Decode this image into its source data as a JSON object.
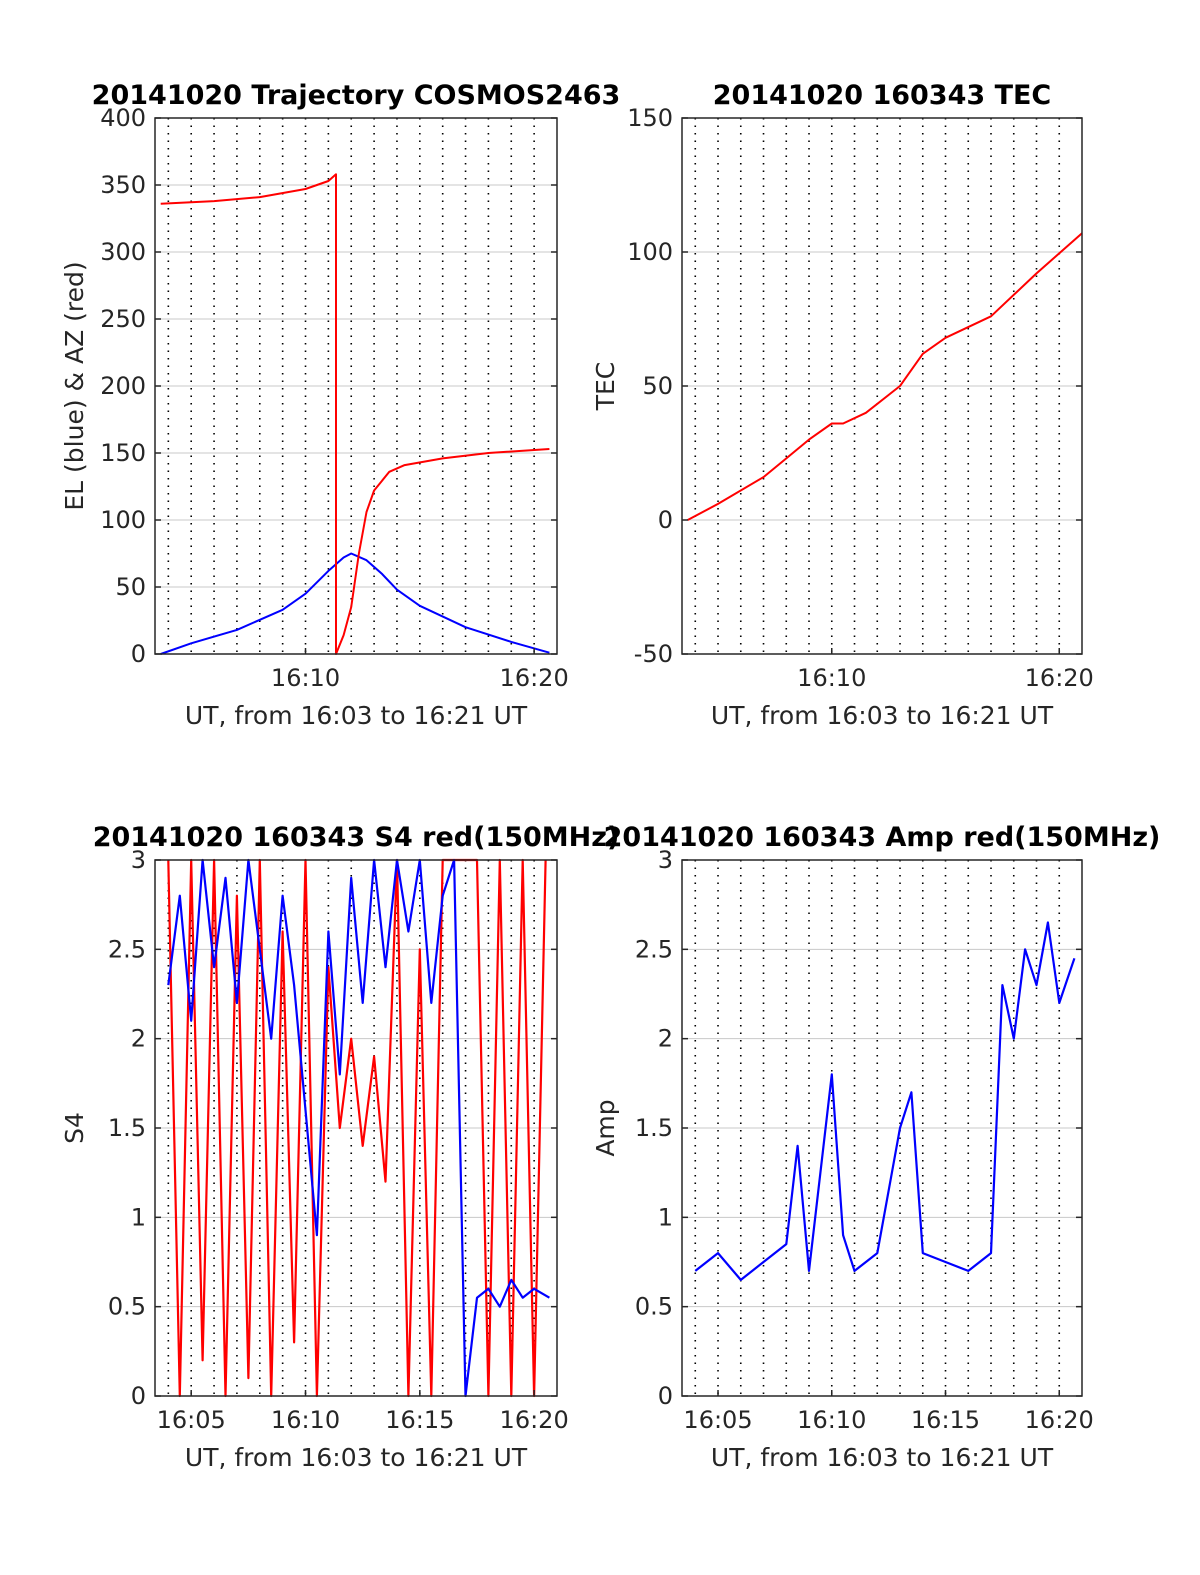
{
  "figure": {
    "colors": {
      "red": "#ff0000",
      "blue": "#0000ff",
      "grid": "#c8c8c8",
      "axis": "#262626"
    }
  },
  "chart_data": [
    {
      "type": "line",
      "title": "20141020 Trajectory COSMOS2463",
      "xlabel": "UT, from 16:03 to 16:21 UT",
      "ylabel": "EL (blue) & AZ (red)",
      "xlim": [
        16.03,
        16.21
      ],
      "ylim": [
        0,
        400
      ],
      "yticks": [
        "0",
        "50",
        "100",
        "150",
        "200",
        "250",
        "300",
        "350",
        "400"
      ],
      "xticks": [
        "16:10",
        "16:20"
      ],
      "grid": true,
      "series": [
        {
          "color": "blue",
          "x": [
            "16:03:40",
            "16:05:00",
            "16:07:00",
            "16:09:00",
            "16:10:00",
            "16:11:00",
            "16:11:40",
            "16:12:00",
            "16:12:40",
            "16:13:20",
            "16:14:00",
            "16:15:00",
            "16:17:00",
            "16:19:00",
            "16:20:40"
          ],
          "y": [
            0,
            8,
            18,
            33,
            45,
            62,
            72,
            75,
            70,
            60,
            48,
            36,
            20,
            9,
            1
          ]
        },
        {
          "color": "red",
          "x": [
            "16:03:40",
            "16:06:00",
            "16:08:00",
            "16:10:00",
            "16:11:00",
            "16:11:20",
            "16:11:20",
            "16:11:40",
            "16:12:00",
            "16:12:20",
            "16:12:40",
            "16:13:00",
            "16:13:40",
            "16:14:20",
            "16:16:00",
            "16:18:00",
            "16:20:40"
          ],
          "y": [
            336,
            338,
            341,
            347,
            353,
            358,
            0,
            14,
            35,
            75,
            106,
            122,
            136,
            141,
            146,
            150,
            153
          ]
        }
      ]
    },
    {
      "type": "line",
      "title": "20141020 160343 TEC",
      "xlabel": "UT, from 16:03 to 16:21 UT",
      "ylabel": "TEC",
      "xlim": [
        16.03,
        16.21
      ],
      "ylim": [
        -50,
        150
      ],
      "yticks": [
        "-50",
        "0",
        "50",
        "100",
        "150"
      ],
      "xticks": [
        "16:10",
        "16:20"
      ],
      "grid": true,
      "series": [
        {
          "color": "red",
          "x": [
            "16:03:40",
            "16:05:00",
            "16:07:00",
            "16:08:00",
            "16:09:00",
            "16:10:00",
            "16:10:30",
            "16:11:30",
            "16:13:00",
            "16:14:00",
            "16:15:00",
            "16:17:00",
            "16:19:00",
            "16:21:00"
          ],
          "y": [
            0,
            6,
            16,
            23,
            30,
            36,
            36,
            40,
            50,
            62,
            68,
            76,
            92,
            107
          ]
        }
      ]
    },
    {
      "type": "line",
      "title": "20141020 160343 S4 red(150MHz)",
      "xlabel": "UT, from 16:03 to 16:21 UT",
      "ylabel": "S4",
      "xlim": [
        16.03,
        16.21
      ],
      "ylim": [
        0,
        3
      ],
      "yticks": [
        "0",
        "0.5",
        "1",
        "1.5",
        "2",
        "2.5",
        "3"
      ],
      "xticks": [
        "16:05",
        "16:10",
        "16:15",
        "16:20"
      ],
      "grid": true,
      "series": [
        {
          "color": "red",
          "x": [
            "16:04:00",
            "16:04:30",
            "16:05:00",
            "16:05:30",
            "16:06:00",
            "16:06:30",
            "16:07:00",
            "16:07:30",
            "16:08:00",
            "16:08:30",
            "16:09:00",
            "16:09:30",
            "16:10:00",
            "16:10:30",
            "16:11:00",
            "16:11:30",
            "16:12:00",
            "16:12:30",
            "16:13:00",
            "16:13:30",
            "16:14:00",
            "16:14:30",
            "16:15:00",
            "16:15:30",
            "16:16:00",
            "16:17:30",
            "16:18:00",
            "16:18:30",
            "16:19:00",
            "16:19:30",
            "16:20:00",
            "16:20:30"
          ],
          "y": [
            3,
            0,
            3,
            0.2,
            3,
            0,
            2.8,
            0.1,
            3,
            0,
            2.6,
            0.3,
            3,
            0,
            2.4,
            1.5,
            2.0,
            1.4,
            1.9,
            1.2,
            3,
            0,
            2.5,
            0,
            3,
            3,
            0,
            3,
            0,
            3,
            0,
            3
          ]
        },
        {
          "color": "blue",
          "x": [
            "16:04:00",
            "16:04:30",
            "16:05:00",
            "16:05:30",
            "16:06:00",
            "16:06:30",
            "16:07:00",
            "16:07:30",
            "16:08:00",
            "16:08:30",
            "16:09:00",
            "16:09:30",
            "16:10:00",
            "16:10:30",
            "16:11:00",
            "16:11:30",
            "16:12:00",
            "16:12:30",
            "16:13:00",
            "16:13:30",
            "16:14:00",
            "16:14:30",
            "16:15:00",
            "16:15:30",
            "16:16:00",
            "16:16:30",
            "16:17:00",
            "16:17:30",
            "16:18:00",
            "16:18:30",
            "16:19:00",
            "16:19:30",
            "16:20:00",
            "16:20:40"
          ],
          "y": [
            2.3,
            2.8,
            2.1,
            3,
            2.4,
            2.9,
            2.2,
            3,
            2.5,
            2.0,
            2.8,
            2.3,
            1.6,
            0.9,
            2.6,
            1.8,
            2.9,
            2.2,
            3,
            2.4,
            3,
            2.6,
            3,
            2.2,
            2.8,
            3,
            0,
            0.55,
            0.6,
            0.5,
            0.65,
            0.55,
            0.6,
            0.55
          ]
        }
      ]
    },
    {
      "type": "line",
      "title": "20141020 160343 Amp red(150MHz)",
      "xlabel": "UT, from 16:03 to 16:21 UT",
      "ylabel": "Amp",
      "xlim": [
        16.03,
        16.21
      ],
      "ylim": [
        0,
        3
      ],
      "yticks": [
        "0",
        "0.5",
        "1",
        "1.5",
        "2",
        "2.5",
        "3"
      ],
      "xticks": [
        "16:05",
        "16:10",
        "16:15",
        "16:20"
      ],
      "grid": true,
      "series": [
        {
          "color": "blue",
          "x": [
            "16:04:00",
            "16:05:00",
            "16:06:00",
            "16:07:00",
            "16:08:00",
            "16:08:30",
            "16:09:00",
            "16:10:00",
            "16:10:30",
            "16:11:00",
            "16:12:00",
            "16:13:00",
            "16:13:30",
            "16:14:00",
            "16:15:00",
            "16:16:00",
            "16:17:00",
            "16:17:30",
            "16:18:00",
            "16:18:30",
            "16:19:00",
            "16:19:30",
            "16:20:00",
            "16:20:40"
          ],
          "y": [
            0.7,
            0.8,
            0.65,
            0.75,
            0.85,
            1.4,
            0.7,
            1.8,
            0.9,
            0.7,
            0.8,
            1.5,
            1.7,
            0.8,
            0.75,
            0.7,
            0.8,
            2.3,
            2.0,
            2.5,
            2.3,
            2.65,
            2.2,
            2.45
          ]
        }
      ]
    }
  ]
}
